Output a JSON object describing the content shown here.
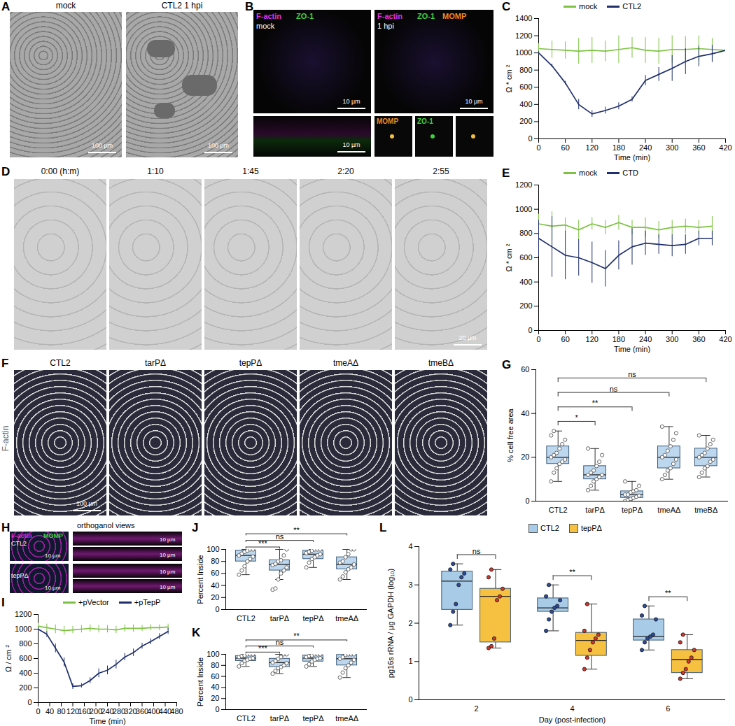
{
  "chart_data": [
    {
      "panel": "C",
      "type": "line",
      "x_label": "Time (min)",
      "y_label": "Ω * cm ²",
      "x": [
        0,
        30,
        60,
        90,
        120,
        150,
        180,
        210,
        240,
        270,
        300,
        330,
        360,
        390,
        420
      ],
      "xlim": [
        0,
        420
      ],
      "xticks": [
        0,
        60,
        120,
        180,
        240,
        300,
        360,
        420
      ],
      "ylim": [
        0,
        1400
      ],
      "yticks": [
        0,
        200,
        400,
        600,
        800,
        1000,
        1200,
        1400
      ],
      "legend": "top",
      "series": [
        {
          "name": "mock",
          "color": "#7dc242",
          "values": [
            1050,
            1040,
            1030,
            1020,
            1030,
            1020,
            1040,
            1060,
            1030,
            1020,
            1040,
            1040,
            1050,
            1040,
            1030
          ],
          "errors": [
            60,
            100,
            100,
            150,
            150,
            120,
            160,
            120,
            150,
            150,
            160,
            150,
            150,
            130,
            80
          ]
        },
        {
          "name": "CTL2",
          "color": "#1f2f6b",
          "values": [
            1000,
            850,
            650,
            400,
            290,
            330,
            380,
            460,
            680,
            750,
            820,
            900,
            960,
            990,
            1030
          ],
          "errors": [
            20,
            20,
            20,
            60,
            40,
            40,
            40,
            30,
            60,
            80,
            150,
            150,
            120,
            100,
            60
          ]
        }
      ]
    },
    {
      "panel": "E",
      "type": "line",
      "x_label": "Time (min)",
      "y_label": "Ω * cm ²",
      "x": [
        0,
        30,
        60,
        90,
        120,
        150,
        180,
        210,
        240,
        270,
        300,
        330,
        360,
        390
      ],
      "xlim": [
        0,
        420
      ],
      "xticks": [
        0,
        60,
        120,
        180,
        240,
        300,
        360,
        420
      ],
      "ylim": [
        0,
        1200
      ],
      "yticks": [
        0,
        200,
        400,
        600,
        800,
        1000,
        1200
      ],
      "legend": "top",
      "series": [
        {
          "name": "mock",
          "color": "#7dc242",
          "values": [
            880,
            860,
            870,
            830,
            880,
            850,
            890,
            850,
            850,
            830,
            850,
            860,
            850,
            860
          ],
          "errors": [
            80,
            120,
            60,
            80,
            50,
            60,
            60,
            60,
            80,
            70,
            60,
            60,
            60,
            80
          ]
        },
        {
          "name": "CTD",
          "color": "#1f2f6b",
          "values": [
            760,
            690,
            620,
            600,
            560,
            510,
            620,
            690,
            720,
            710,
            700,
            710,
            760,
            760
          ],
          "errors": [
            150,
            250,
            200,
            150,
            170,
            150,
            120,
            150,
            100,
            80,
            90,
            80,
            60,
            60
          ]
        }
      ]
    },
    {
      "panel": "G",
      "type": "box",
      "y_label": "% cell free area",
      "color": "#bcd7ee",
      "categories": [
        "CTL2",
        "tarPΔ",
        "tepPΔ",
        "tmeAΔ",
        "tmeBΔ"
      ],
      "ylim": [
        0,
        60
      ],
      "yticks": [
        0,
        20,
        40,
        60
      ],
      "boxes": [
        {
          "min": 9,
          "q1": 17,
          "median": 20,
          "q3": 25,
          "max": 32
        },
        {
          "min": 5,
          "q1": 10,
          "median": 12,
          "q3": 16,
          "max": 24
        },
        {
          "min": 0,
          "q1": 1.5,
          "median": 3,
          "q3": 4.5,
          "max": 9
        },
        {
          "min": 10,
          "q1": 15,
          "median": 20,
          "q3": 25,
          "max": 34
        },
        {
          "min": 11,
          "q1": 16,
          "median": 20,
          "q3": 24,
          "max": 30
        }
      ],
      "points": [
        [
          9,
          13,
          15,
          17,
          18,
          19,
          20,
          21,
          22,
          24,
          26,
          28,
          30,
          32
        ],
        [
          5,
          7,
          9,
          10,
          11,
          12,
          12,
          13,
          14,
          16,
          18,
          21,
          24
        ],
        [
          0,
          0.5,
          1,
          1.5,
          2,
          2.5,
          3,
          3,
          4,
          4.5,
          5,
          7,
          9
        ],
        [
          10,
          12,
          14,
          15,
          17,
          19,
          20,
          21,
          23,
          25,
          28,
          31,
          34
        ],
        [
          11,
          13,
          15,
          16,
          18,
          19,
          20,
          21,
          22,
          24,
          26,
          28,
          30
        ]
      ],
      "significance": [
        {
          "from": "CTL2",
          "to": "tarPΔ",
          "label": "*"
        },
        {
          "from": "CTL2",
          "to": "tepPΔ",
          "label": "**"
        },
        {
          "from": "CTL2",
          "to": "tmeAΔ",
          "label": "ns"
        },
        {
          "from": "CTL2",
          "to": "tmeBΔ",
          "label": "ns"
        }
      ]
    },
    {
      "panel": "I",
      "type": "line",
      "x_label": "Time (min)",
      "y_label": "Ω / cm ²",
      "x": [
        0,
        30,
        60,
        90,
        120,
        150,
        180,
        210,
        240,
        270,
        300,
        330,
        360,
        390,
        420,
        450
      ],
      "xlim": [
        0,
        480
      ],
      "xticks": [
        0,
        40,
        80,
        120,
        160,
        200,
        240,
        280,
        320,
        360,
        400,
        440,
        480
      ],
      "ylim": [
        0,
        1200
      ],
      "yticks": [
        0,
        200,
        400,
        600,
        800,
        1000,
        1200
      ],
      "legend": "top",
      "series": [
        {
          "name": "+pVector",
          "color": "#7dc242",
          "values": [
            1040,
            1020,
            1000,
            980,
            990,
            1000,
            1010,
            1000,
            1000,
            990,
            1010,
            1010,
            1010,
            1020,
            1020,
            1030
          ],
          "errors": [
            40,
            50,
            60,
            60,
            50,
            50,
            50,
            50,
            50,
            50,
            50,
            50,
            40,
            40,
            40,
            40
          ]
        },
        {
          "name": "+pTepP",
          "color": "#1f2f6b",
          "values": [
            1000,
            930,
            740,
            550,
            220,
            230,
            300,
            400,
            440,
            520,
            620,
            680,
            770,
            830,
            900,
            970
          ],
          "errors": [
            30,
            40,
            60,
            60,
            40,
            30,
            40,
            60,
            60,
            60,
            50,
            50,
            40,
            40,
            40,
            40
          ]
        }
      ]
    },
    {
      "panel": "J",
      "type": "box",
      "y_label": "Percent Inside",
      "color": "#bcd7ee",
      "categories": [
        "CTL2",
        "tarPΔ",
        "tepPΔ",
        "tmeAΔ"
      ],
      "ylim": [
        0,
        100
      ],
      "yticks": [
        0,
        20,
        40,
        60,
        80,
        100
      ],
      "boxes": [
        {
          "min": 58,
          "q1": 80,
          "median": 90,
          "q3": 98,
          "max": 100
        },
        {
          "min": 50,
          "q1": 65,
          "median": 75,
          "q3": 82,
          "max": 100
        },
        {
          "min": 70,
          "q1": 84,
          "median": 92,
          "q3": 98,
          "max": 100
        },
        {
          "min": 50,
          "q1": 67,
          "median": 75,
          "q3": 87,
          "max": 100
        }
      ],
      "points": [
        [
          58,
          65,
          72,
          80,
          84,
          88,
          90,
          93,
          96,
          98,
          100,
          100
        ],
        [
          33,
          35,
          50,
          60,
          65,
          70,
          74,
          76,
          80,
          82,
          90,
          100
        ],
        [
          70,
          78,
          84,
          87,
          90,
          92,
          94,
          96,
          98,
          100,
          100,
          100
        ],
        [
          50,
          55,
          62,
          67,
          70,
          75,
          78,
          80,
          87,
          92,
          100,
          100
        ]
      ],
      "significance": [
        {
          "from": "CTL2",
          "to": "tarPΔ",
          "label": "***"
        },
        {
          "from": "CTL2",
          "to": "tepPΔ",
          "label": "ns"
        },
        {
          "from": "CTL2",
          "to": "tmeAΔ",
          "label": "**"
        }
      ]
    },
    {
      "panel": "K",
      "type": "box",
      "y_label": "Percent Inside",
      "color": "#bcd7ee",
      "categories": [
        "CTL2",
        "tarPΔ",
        "tepPΔ",
        "tmeAΔ"
      ],
      "ylim": [
        0,
        100
      ],
      "yticks": [
        0,
        20,
        40,
        60,
        80,
        100
      ],
      "boxes": [
        {
          "min": 78,
          "q1": 88,
          "median": 93,
          "q3": 97,
          "max": 100
        },
        {
          "min": 65,
          "q1": 77,
          "median": 85,
          "q3": 92,
          "max": 100
        },
        {
          "min": 78,
          "q1": 87,
          "median": 93,
          "q3": 98,
          "max": 100
        },
        {
          "min": 58,
          "q1": 80,
          "median": 92,
          "q3": 99,
          "max": 100
        }
      ],
      "points": [
        [
          78,
          84,
          88,
          90,
          92,
          93,
          95,
          97,
          98,
          100,
          100,
          100
        ],
        [
          65,
          70,
          75,
          77,
          80,
          84,
          85,
          88,
          92,
          95,
          100,
          100
        ],
        [
          78,
          82,
          87,
          90,
          92,
          93,
          95,
          97,
          98,
          100,
          100,
          100
        ],
        [
          58,
          67,
          75,
          80,
          85,
          90,
          92,
          95,
          99,
          100,
          100,
          100
        ]
      ],
      "significance": [
        {
          "from": "CTL2",
          "to": "tarPΔ",
          "label": "***"
        },
        {
          "from": "CTL2",
          "to": "tepPΔ",
          "label": "ns"
        },
        {
          "from": "CTL2",
          "to": "tmeAΔ",
          "label": "**"
        }
      ]
    },
    {
      "panel": "L",
      "type": "grouped_box",
      "x_label": "Day (post-infection)",
      "y_label": "pg16s rRNA / μg GAPDH (log₁₀)",
      "categories": [
        2,
        4,
        6
      ],
      "ylim": [
        0,
        4
      ],
      "yticks": [
        0,
        1,
        2,
        3,
        4
      ],
      "legend": "top",
      "series": [
        {
          "name": "CTL2",
          "color": "#a8cbe8",
          "boxes": [
            {
              "min": 1.95,
              "q1": 2.35,
              "median": 3.1,
              "q3": 3.35,
              "max": 3.55
            },
            {
              "min": 1.8,
              "q1": 2.3,
              "median": 2.4,
              "q3": 2.65,
              "max": 3.0
            },
            {
              "min": 1.3,
              "q1": 1.55,
              "median": 1.65,
              "q3": 2.1,
              "max": 2.45
            }
          ],
          "points": [
            [
              1.95,
              2.3,
              2.5,
              3.0,
              3.2,
              3.3,
              3.4,
              3.55
            ],
            [
              1.8,
              2.1,
              2.3,
              2.4,
              2.45,
              2.6,
              2.7,
              3.0
            ],
            [
              1.3,
              1.5,
              1.6,
              1.65,
              1.7,
              2.1,
              2.2,
              2.45
            ]
          ]
        },
        {
          "name": "tepPΔ",
          "color": "#f6c141",
          "boxes": [
            {
              "min": 1.35,
              "q1": 1.5,
              "median": 2.7,
              "q3": 2.9,
              "max": 3.4
            },
            {
              "min": 0.8,
              "q1": 1.15,
              "median": 1.55,
              "q3": 1.75,
              "max": 2.5
            },
            {
              "min": 0.55,
              "q1": 0.7,
              "median": 1.05,
              "q3": 1.3,
              "max": 1.7
            }
          ],
          "points": [
            [
              1.35,
              1.4,
              1.6,
              2.6,
              2.7,
              2.9,
              3.2,
              3.4
            ],
            [
              0.8,
              1.1,
              1.3,
              1.5,
              1.6,
              1.7,
              1.8,
              2.5
            ],
            [
              0.55,
              0.7,
              0.8,
              1.0,
              1.1,
              1.3,
              1.5,
              1.7
            ]
          ]
        }
      ],
      "significance": [
        {
          "category": 2,
          "label": "ns"
        },
        {
          "category": 4,
          "label": "**"
        },
        {
          "category": 6,
          "label": "**"
        }
      ]
    }
  ],
  "image_panels": [
    {
      "panel": "A",
      "frames": [
        {
          "title": "mock",
          "scale_bar": "100 µm"
        },
        {
          "title": "CTL2  1 hpi",
          "scale_bar": "100 µm"
        }
      ]
    },
    {
      "panel": "B",
      "frames": [
        {
          "stains": [
            {
              "name": "F-actin",
              "color": "#e030e0"
            },
            {
              "name": "ZO-1",
              "color": "#40d040"
            }
          ],
          "title": "mock",
          "scale_bar": "10 µm"
        },
        {
          "stains": [
            {
              "name": "F-actin",
              "color": "#e030e0"
            },
            {
              "name": "ZO-1",
              "color": "#40d040"
            },
            {
              "name": "MOMP",
              "color": "#f08a20"
            }
          ],
          "title": "1 hpi",
          "scale_bar": "10 µm"
        }
      ],
      "orthogonal_scale_bar": "10 µm",
      "insets": [
        {
          "name": "MOMP",
          "color": "#f08a20"
        },
        {
          "name": "ZO-1",
          "color": "#40d040"
        }
      ]
    },
    {
      "panel": "D",
      "frames": [
        "0:00 (h:m)",
        "1:10",
        "1:45",
        "2:20",
        "2:55"
      ],
      "scale_bar": "20 µm"
    },
    {
      "panel": "F",
      "stain": "F-actin",
      "frames": [
        "CTL2",
        "tarPΔ",
        "tepPΔ",
        "tmeAΔ",
        "tmeBΔ"
      ],
      "scale_bar": "100 µm"
    },
    {
      "panel": "H",
      "stains": [
        {
          "name": "F-actin",
          "color": "#e030e0"
        },
        {
          "name": "MOMP",
          "color": "#40d040"
        }
      ],
      "orthogonal_title": "orthoganol views",
      "rows": [
        "CTL2",
        "tepPΔ"
      ],
      "scale_bar": "10 µm"
    }
  ]
}
